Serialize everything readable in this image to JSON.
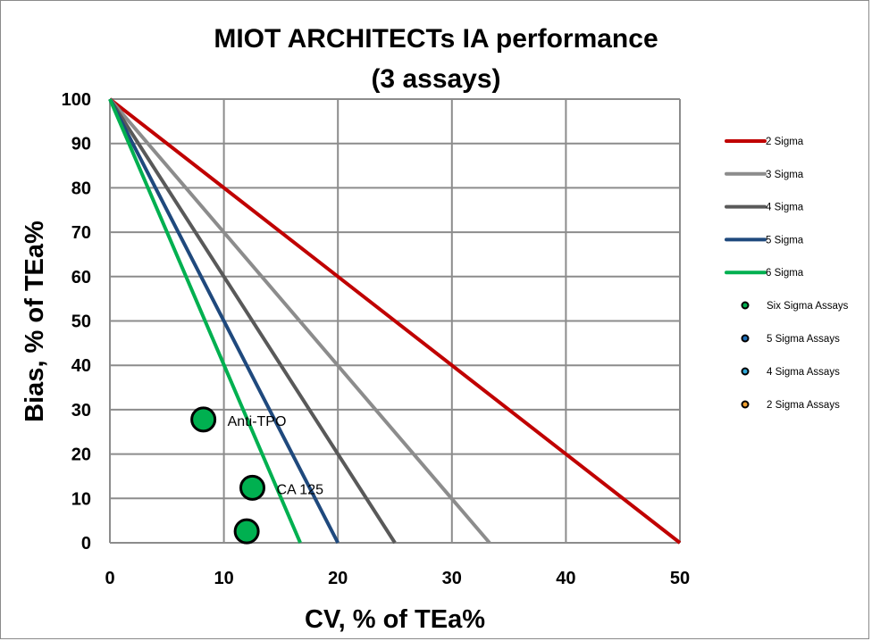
{
  "chart_data": {
    "type": "line",
    "title": [
      "MIOT ARCHITECTs IA performance",
      "(3 assays)"
    ],
    "xlabel": "CV, % of TEa%",
    "ylabel": "Bias, % of TEa%",
    "xlim": [
      0,
      50
    ],
    "ylim": [
      0,
      100
    ],
    "x_ticks": [
      0,
      10,
      20,
      30,
      40,
      50
    ],
    "y_ticks": [
      0,
      10,
      20,
      30,
      40,
      50,
      60,
      70,
      80,
      90,
      100
    ],
    "grid": true,
    "legend_position": "right",
    "series": [
      {
        "name": "2 Sigma",
        "color": "#C00000",
        "points": [
          [
            0,
            100
          ],
          [
            50,
            0
          ]
        ]
      },
      {
        "name": "3 Sigma",
        "color": "#8C8C8C",
        "points": [
          [
            0,
            100
          ],
          [
            33.3,
            0
          ]
        ]
      },
      {
        "name": "4 Sigma",
        "color": "#595959",
        "points": [
          [
            0,
            100
          ],
          [
            25,
            0
          ]
        ]
      },
      {
        "name": "5 Sigma",
        "color": "#1F497D",
        "points": [
          [
            0,
            100
          ],
          [
            20,
            0
          ]
        ]
      },
      {
        "name": "6 Sigma",
        "color": "#00B050",
        "points": [
          [
            0,
            100
          ],
          [
            16.7,
            0
          ]
        ]
      }
    ],
    "marker_series": [
      {
        "name": "Six Sigma Assays",
        "color": "#00B050",
        "points": [
          {
            "x": 8.2,
            "y": 27.8,
            "label": "Anti-TPO"
          },
          {
            "x": 12.5,
            "y": 12.4,
            "label": "CA 125"
          },
          {
            "x": 12.0,
            "y": 2.6,
            "label": ""
          }
        ]
      },
      {
        "name": "5 Sigma Assays",
        "color": "#1F6FB8",
        "points": []
      },
      {
        "name": "4 Sigma Assays",
        "color": "#2FA8D8",
        "points": []
      },
      {
        "name": "2 Sigma Assays",
        "color": "#F0A030",
        "points": []
      }
    ]
  }
}
